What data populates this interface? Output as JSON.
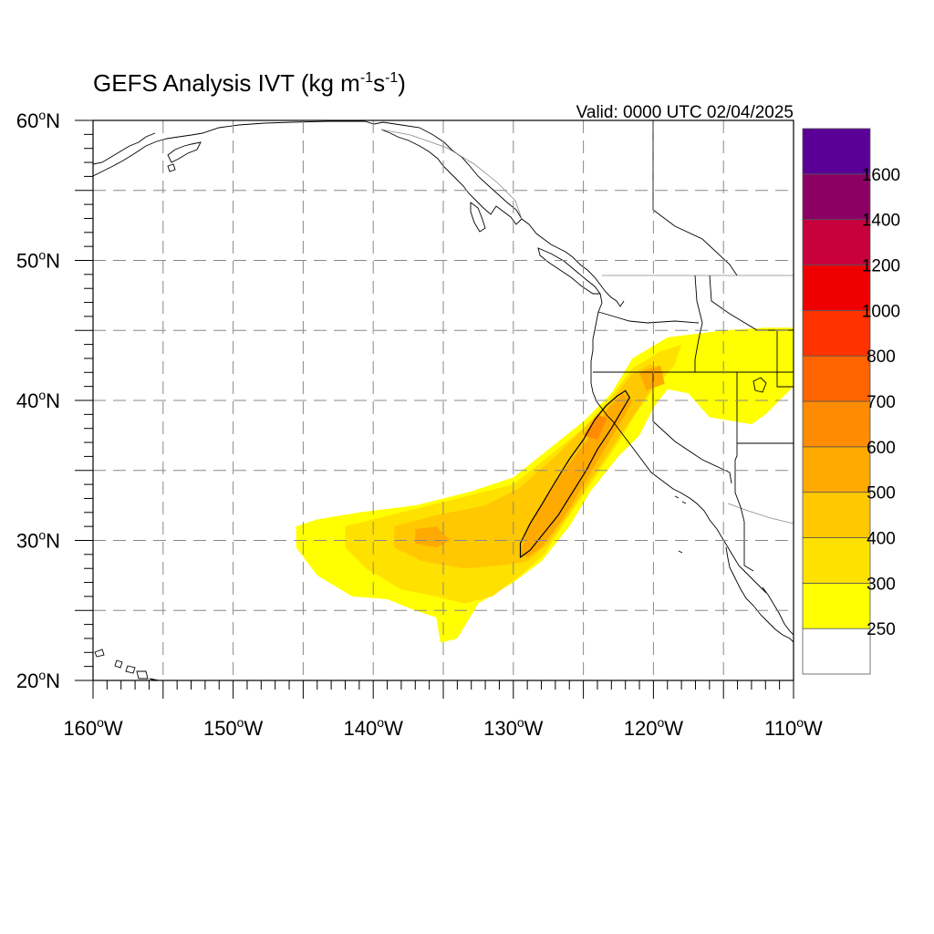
{
  "title": {
    "main": "GEFS Analysis IVT (kg m",
    "sup1": "-1",
    "mid": "s",
    "sup2": "-1",
    "end": ")"
  },
  "valid_label": "Valid: 0000 UTC 02/04/2025",
  "map": {
    "lon_range": [
      -160,
      -110
    ],
    "lat_range": [
      20,
      60
    ],
    "gridline_lons": [
      -155,
      -150,
      -145,
      -140,
      -135,
      -130,
      -125,
      -120,
      -115
    ],
    "gridline_lats": [
      25,
      30,
      35,
      40,
      45,
      50,
      55
    ],
    "x_ticks": [
      {
        "value": -160,
        "deg": "160",
        "hemi": "W"
      },
      {
        "value": -150,
        "deg": "150",
        "hemi": "W"
      },
      {
        "value": -140,
        "deg": "140",
        "hemi": "W"
      },
      {
        "value": -130,
        "deg": "130",
        "hemi": "W"
      },
      {
        "value": -120,
        "deg": "120",
        "hemi": "W"
      },
      {
        "value": -110,
        "deg": "110",
        "hemi": "W"
      }
    ],
    "y_ticks": [
      {
        "value": 60,
        "deg": "60",
        "hemi": "N"
      },
      {
        "value": 50,
        "deg": "50",
        "hemi": "N"
      },
      {
        "value": 40,
        "deg": "40",
        "hemi": "N"
      },
      {
        "value": 30,
        "deg": "30",
        "hemi": "N"
      },
      {
        "value": 20,
        "deg": "20",
        "hemi": "N"
      }
    ],
    "coast_color": "#000000",
    "ocean_color": "#ffffff"
  },
  "colorbar": {
    "levels": [
      "250",
      "300",
      "400",
      "500",
      "600",
      "700",
      "800",
      "1000",
      "1200",
      "1400",
      "1600"
    ],
    "colors": [
      "#ffffff",
      "#ffff00",
      "#ffe100",
      "#ffc800",
      "#ffaa00",
      "#ff8c00",
      "#ff6400",
      "#ff3200",
      "#ee0000",
      "#c8003c",
      "#8c0064",
      "#5a0096"
    ]
  },
  "ivt_field": {
    "description_units": "kg m-1 s-1",
    "regions": [
      {
        "level": 250,
        "color": "#ffff00",
        "points": [
          [
            -145.5,
            31
          ],
          [
            -144,
            31.5
          ],
          [
            -141,
            32
          ],
          [
            -137,
            32.5
          ],
          [
            -133,
            33.5
          ],
          [
            -130,
            34.5
          ],
          [
            -127.5,
            36.5
          ],
          [
            -125,
            38.5
          ],
          [
            -123,
            40.5
          ],
          [
            -121.5,
            43
          ],
          [
            -119,
            44.5
          ],
          [
            -115,
            45
          ],
          [
            -112,
            45.2
          ],
          [
            -110,
            45.2
          ],
          [
            -110,
            41
          ],
          [
            -112,
            39
          ],
          [
            -113,
            38.3
          ],
          [
            -116,
            38.8
          ],
          [
            -117.5,
            40.5
          ],
          [
            -119,
            40.8
          ],
          [
            -120,
            39.5
          ],
          [
            -121,
            37.5
          ],
          [
            -122.5,
            36
          ],
          [
            -124.5,
            33.5
          ],
          [
            -126,
            31
          ],
          [
            -128,
            28.5
          ],
          [
            -130,
            27
          ],
          [
            -132.5,
            25.5
          ],
          [
            -134,
            23
          ],
          [
            -135.2,
            22.7
          ],
          [
            -135.5,
            24.5
          ],
          [
            -137,
            25
          ],
          [
            -139,
            25.8
          ],
          [
            -141.5,
            26
          ],
          [
            -144,
            27.5
          ],
          [
            -145.5,
            29.5
          ]
        ]
      },
      {
        "level": 300,
        "color": "#ffe100",
        "points": [
          [
            -142,
            31
          ],
          [
            -138,
            32
          ],
          [
            -134,
            33
          ],
          [
            -130,
            34
          ],
          [
            -127.5,
            36
          ],
          [
            -125,
            38
          ],
          [
            -123,
            40.3
          ],
          [
            -121.5,
            42.3
          ],
          [
            -119.5,
            43.5
          ],
          [
            -118,
            44
          ],
          [
            -118.5,
            42.5
          ],
          [
            -120,
            40.8
          ],
          [
            -121.3,
            39
          ],
          [
            -122.5,
            37
          ],
          [
            -124.5,
            34
          ],
          [
            -126.2,
            31.5
          ],
          [
            -127.8,
            29
          ],
          [
            -129.5,
            27.5
          ],
          [
            -131.5,
            26
          ],
          [
            -133.5,
            25.5
          ],
          [
            -135.5,
            26
          ],
          [
            -138,
            26.5
          ],
          [
            -140.5,
            28
          ],
          [
            -142,
            29.5
          ]
        ]
      },
      {
        "level": 400,
        "color": "#ffc800",
        "points": [
          [
            -138.5,
            31
          ],
          [
            -135.5,
            31.8
          ],
          [
            -132,
            32.5
          ],
          [
            -129.5,
            33.8
          ],
          [
            -127,
            36
          ],
          [
            -124.8,
            38.2
          ],
          [
            -123,
            40
          ],
          [
            -121.6,
            41.8
          ],
          [
            -120.2,
            42.6
          ],
          [
            -119.2,
            42
          ],
          [
            -120.3,
            40.6
          ],
          [
            -121.5,
            38.8
          ],
          [
            -122.7,
            37
          ],
          [
            -124.5,
            34.3
          ],
          [
            -126,
            32
          ],
          [
            -127.5,
            29.8
          ],
          [
            -129,
            28.5
          ],
          [
            -131,
            28.2
          ],
          [
            -133.5,
            28
          ],
          [
            -136.5,
            28.5
          ],
          [
            -138.5,
            29.5
          ]
        ]
      },
      {
        "level": 500,
        "color": "#ffaa00",
        "points": [
          [
            -137,
            30.8
          ],
          [
            -135.5,
            31
          ],
          [
            -134.5,
            30
          ],
          [
            -135.5,
            29.5
          ],
          [
            -137,
            29.8
          ]
        ]
      },
      {
        "level": 500,
        "color": "#ffaa00",
        "points": [
          [
            -129.5,
            29
          ],
          [
            -129,
            31
          ],
          [
            -127.5,
            33.5
          ],
          [
            -126,
            35.5
          ],
          [
            -124.5,
            37.5
          ],
          [
            -123.2,
            39.5
          ],
          [
            -122.2,
            40.5
          ],
          [
            -121.5,
            40
          ],
          [
            -122.3,
            38.5
          ],
          [
            -123.5,
            36.5
          ],
          [
            -125,
            34
          ],
          [
            -126.5,
            31.5
          ],
          [
            -128,
            29.5
          ],
          [
            -129,
            28.8
          ]
        ]
      },
      {
        "level": 500,
        "color": "#ffaa00",
        "points": [
          [
            -121,
            42
          ],
          [
            -119.5,
            42.5
          ],
          [
            -119.2,
            41.2
          ],
          [
            -120.5,
            40.7
          ]
        ]
      },
      {
        "level": 600,
        "color": "#ff8c00",
        "points": [
          [
            -125,
            37.5
          ],
          [
            -124,
            39
          ],
          [
            -123.3,
            38.7
          ],
          [
            -124,
            37.2
          ]
        ]
      }
    ],
    "contour_600_outline": [
      [
        -129.5,
        28.8
      ],
      [
        -129.5,
        29.8
      ],
      [
        -128.8,
        31.2
      ],
      [
        -128,
        32.5
      ],
      [
        -127,
        34.2
      ],
      [
        -126,
        35.8
      ],
      [
        -125,
        37.2
      ],
      [
        -124.2,
        38.6
      ],
      [
        -123.4,
        39.6
      ],
      [
        -122.6,
        40.3
      ],
      [
        -122,
        40.7
      ],
      [
        -121.7,
        40.2
      ],
      [
        -122.3,
        39.2
      ],
      [
        -123,
        38
      ],
      [
        -124,
        36.5
      ],
      [
        -124.8,
        35
      ],
      [
        -125.8,
        33.4
      ],
      [
        -126.8,
        31.8
      ],
      [
        -128,
        30.3
      ],
      [
        -128.8,
        29.3
      ]
    ]
  }
}
